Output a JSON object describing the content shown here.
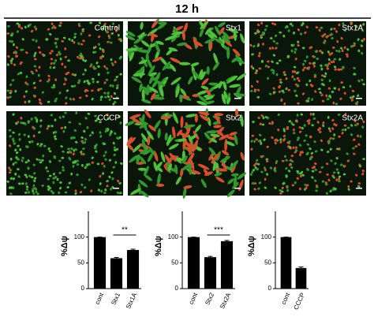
{
  "header": {
    "title": "12 h"
  },
  "panels": [
    {
      "label": "Control"
    },
    {
      "label": "Stx1"
    },
    {
      "label": "Stx1A"
    },
    {
      "label": "CCCP"
    },
    {
      "label": "Stx2"
    },
    {
      "label": "Stx2A"
    }
  ],
  "chart_data": [
    {
      "type": "bar",
      "y_label": "%Δψ",
      "categories": [
        "cont",
        "Stx1",
        "Stx1A"
      ],
      "values": [
        100,
        59,
        75
      ],
      "errors": [
        0,
        1.5,
        1.5
      ],
      "color": "#000000",
      "ylim": [
        0,
        150
      ],
      "yticks": [
        0,
        50,
        100
      ],
      "significance": "**"
    },
    {
      "type": "bar",
      "y_label": "%Δψ",
      "categories": [
        "cont",
        "Stx2",
        "Stx2A"
      ],
      "values": [
        100,
        61,
        92
      ],
      "errors": [
        0,
        1.5,
        1.5
      ],
      "color": "#000000",
      "ylim": [
        0,
        150
      ],
      "yticks": [
        0,
        50,
        100
      ],
      "significance": "***"
    },
    {
      "type": "bar",
      "y_label": "%Δψ",
      "categories": [
        "cont",
        "CCCP"
      ],
      "values": [
        100,
        40
      ],
      "errors": [
        0,
        2
      ],
      "color": "#000000",
      "ylim": [
        0,
        150
      ],
      "yticks": [
        0,
        50,
        100
      ]
    }
  ]
}
